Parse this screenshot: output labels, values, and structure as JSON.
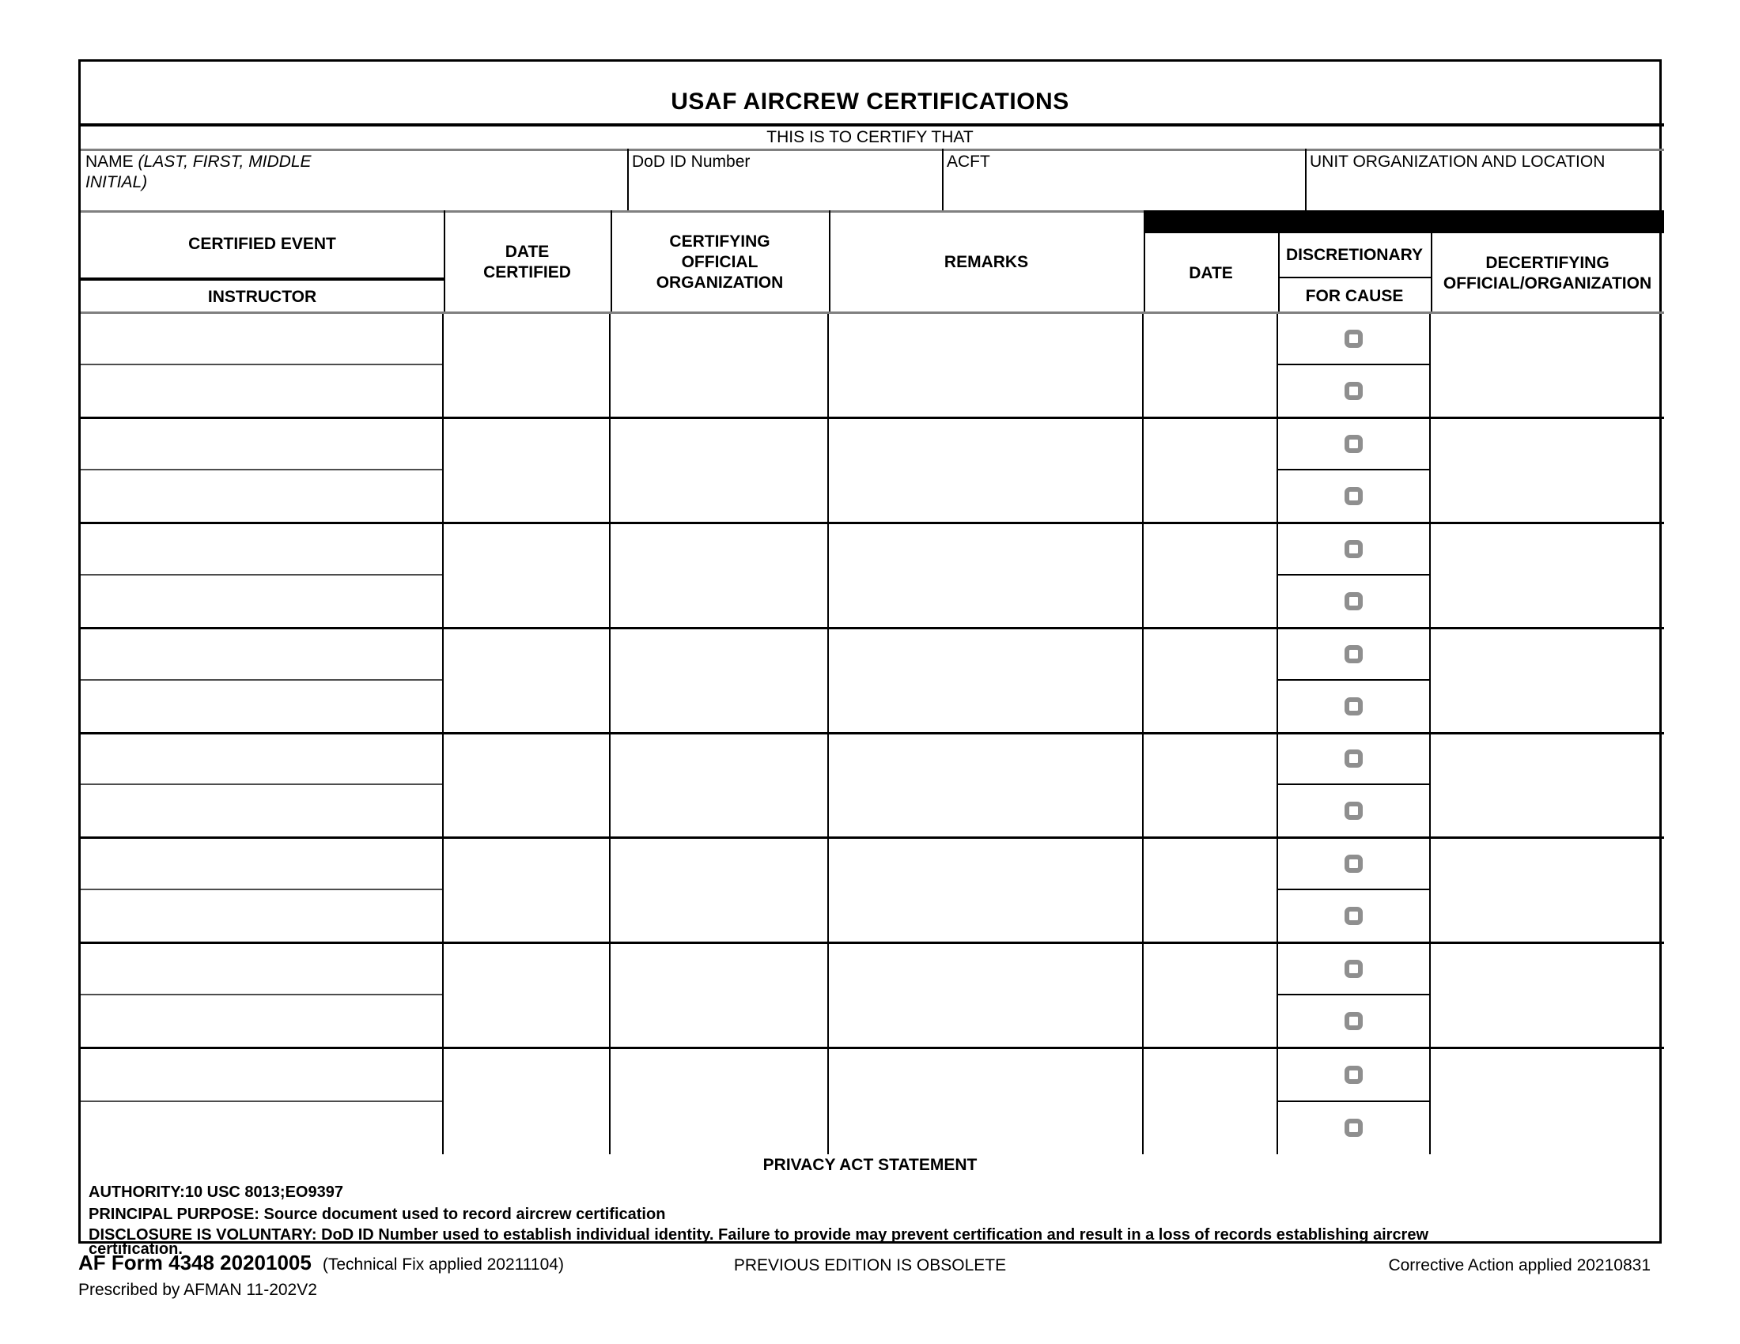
{
  "form": {
    "title": "USAF AIRCREW CERTIFICATIONS",
    "subtitle": "THIS IS TO CERTIFY THAT",
    "info_fields": {
      "name_label": "NAME",
      "name_detail_line1": "(LAST, FIRST, MIDDLE",
      "name_detail_line2": "INITIAL)",
      "dod_id_label": "DoD ID Number",
      "acft_label": "ACFT",
      "unit_label": "UNIT ORGANIZATION AND LOCATION"
    },
    "columns": {
      "certified_event": "CERTIFIED EVENT",
      "instructor": "INSTRUCTOR",
      "date_certified": "DATE\nCERTIFIED",
      "certifying_official": "CERTIFYING\nOFFICIAL\nORGANIZATION",
      "remarks": "REMARKS",
      "decert_date": "DATE",
      "discretionary": "DISCRETIONARY",
      "for_cause": "FOR CAUSE",
      "decertifying_official": "DECERTIFYING\nOFFICIAL/ORGANIZATION"
    },
    "records": [
      {
        "certified_event": "",
        "instructor": "",
        "date_certified": "",
        "certifying_official_organization": "",
        "remarks": "",
        "decert_date": "",
        "for_cause_event_checked": false,
        "for_cause_instructor_checked": false,
        "decertifying_official_organization": ""
      },
      {
        "certified_event": "",
        "instructor": "",
        "date_certified": "",
        "certifying_official_organization": "",
        "remarks": "",
        "decert_date": "",
        "for_cause_event_checked": false,
        "for_cause_instructor_checked": false,
        "decertifying_official_organization": ""
      },
      {
        "certified_event": "",
        "instructor": "",
        "date_certified": "",
        "certifying_official_organization": "",
        "remarks": "",
        "decert_date": "",
        "for_cause_event_checked": false,
        "for_cause_instructor_checked": false,
        "decertifying_official_organization": ""
      },
      {
        "certified_event": "",
        "instructor": "",
        "date_certified": "",
        "certifying_official_organization": "",
        "remarks": "",
        "decert_date": "",
        "for_cause_event_checked": false,
        "for_cause_instructor_checked": false,
        "decertifying_official_organization": ""
      },
      {
        "certified_event": "",
        "instructor": "",
        "date_certified": "",
        "certifying_official_organization": "",
        "remarks": "",
        "decert_date": "",
        "for_cause_event_checked": false,
        "for_cause_instructor_checked": false,
        "decertifying_official_organization": ""
      },
      {
        "certified_event": "",
        "instructor": "",
        "date_certified": "",
        "certifying_official_organization": "",
        "remarks": "",
        "decert_date": "",
        "for_cause_event_checked": false,
        "for_cause_instructor_checked": false,
        "decertifying_official_organization": ""
      },
      {
        "certified_event": "",
        "instructor": "",
        "date_certified": "",
        "certifying_official_organization": "",
        "remarks": "",
        "decert_date": "",
        "for_cause_event_checked": false,
        "for_cause_instructor_checked": false,
        "decertifying_official_organization": ""
      },
      {
        "certified_event": "",
        "instructor": "",
        "date_certified": "",
        "certifying_official_organization": "",
        "remarks": "",
        "decert_date": "",
        "for_cause_event_checked": false,
        "for_cause_instructor_checked": false,
        "decertifying_official_organization": ""
      }
    ],
    "privacy": {
      "title": "PRIVACY ACT STATEMENT",
      "authority": "AUTHORITY:10 USC 8013;EO9397",
      "principal_purpose": "PRINCIPAL PURPOSE: Source document used to record aircrew certification",
      "disclosure_line1": "DISCLOSURE IS VOLUNTARY: DoD ID Number used to establish individual identity. Failure to provide may prevent certification and result in a loss of records establishing aircrew",
      "disclosure_line2": "certification."
    },
    "footer": {
      "form_number": "AF Form 4348 20201005",
      "technical_fix": "(Technical Fix applied 20211104)",
      "previous_edition": "PREVIOUS EDITION IS OBSOLETE",
      "corrective_action": "Corrective Action applied 20210831",
      "prescribed_by": "Prescribed by AFMAN 11-202V2"
    },
    "colors": {
      "border_black": "#000000",
      "line_gray": "#808080",
      "subrow_divider": "#4d4d4d",
      "checkbox_gray": "#8f8f8f"
    }
  }
}
